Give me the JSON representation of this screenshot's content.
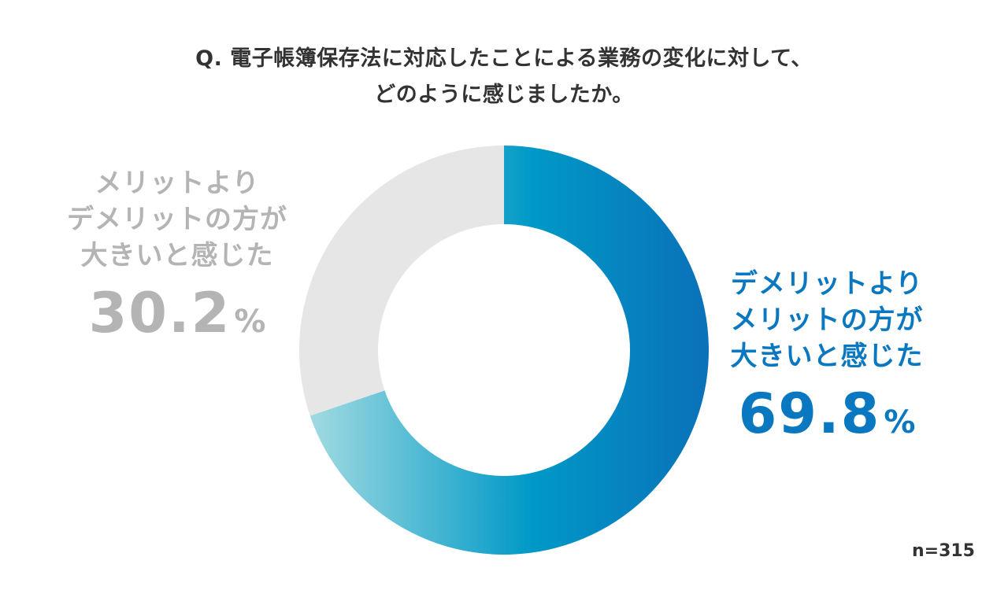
{
  "question": {
    "line1": "Q. 電子帳簿保存法に対応したことによる業務の変化に対して、",
    "line2": "どのように感じましたか。"
  },
  "chart_data": {
    "type": "pie",
    "donut": true,
    "slices": [
      {
        "label_lines": [
          "デメリットより",
          "メリットの方が",
          "大きいと感じた"
        ],
        "value": 69.8,
        "value_text": "69.8",
        "unit": "%",
        "color": "#0a78c0",
        "gradient": [
          "#9dd9e0",
          "#0099c7",
          "#0a71b8"
        ]
      },
      {
        "label_lines": [
          "メリットより",
          "デメリットの方が",
          "大きいと感じた"
        ],
        "value": 30.2,
        "value_text": "30.2",
        "unit": "%",
        "color": "#e6e6e6",
        "label_color": "#b4b4b4"
      }
    ],
    "start_angle": "12 o'clock",
    "direction": "clockwise"
  },
  "sample_size": "n=315"
}
